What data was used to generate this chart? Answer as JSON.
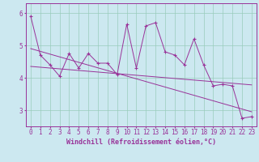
{
  "xlabel": "Windchill (Refroidissement éolien,°C)",
  "background_color": "#cce8f0",
  "plot_bg_color": "#cce8f0",
  "grid_color": "#99ccbb",
  "line_color": "#993399",
  "xlim": [
    -0.5,
    23.5
  ],
  "ylim": [
    2.5,
    6.3
  ],
  "yticks": [
    3,
    4,
    5,
    6
  ],
  "xticks": [
    0,
    1,
    2,
    3,
    4,
    5,
    6,
    7,
    8,
    9,
    10,
    11,
    12,
    13,
    14,
    15,
    16,
    17,
    18,
    19,
    20,
    21,
    22,
    23
  ],
  "data_x": [
    0,
    1,
    2,
    3,
    4,
    5,
    6,
    7,
    8,
    9,
    10,
    11,
    12,
    13,
    14,
    15,
    16,
    17,
    18,
    19,
    20,
    21,
    22,
    23
  ],
  "data_y": [
    5.9,
    4.7,
    4.4,
    4.05,
    4.75,
    4.3,
    4.75,
    4.45,
    4.45,
    4.1,
    5.65,
    4.3,
    5.6,
    5.7,
    4.8,
    4.7,
    4.4,
    5.2,
    4.4,
    3.75,
    3.8,
    3.75,
    2.75,
    2.8
  ],
  "trend1_x": [
    0,
    23
  ],
  "trend1_y": [
    4.35,
    3.78
  ],
  "trend2_x": [
    0,
    23
  ],
  "trend2_y": [
    4.9,
    2.95
  ],
  "tick_fontsize": 5.5,
  "label_fontsize": 6,
  "figsize": [
    3.2,
    2.0
  ],
  "dpi": 100
}
